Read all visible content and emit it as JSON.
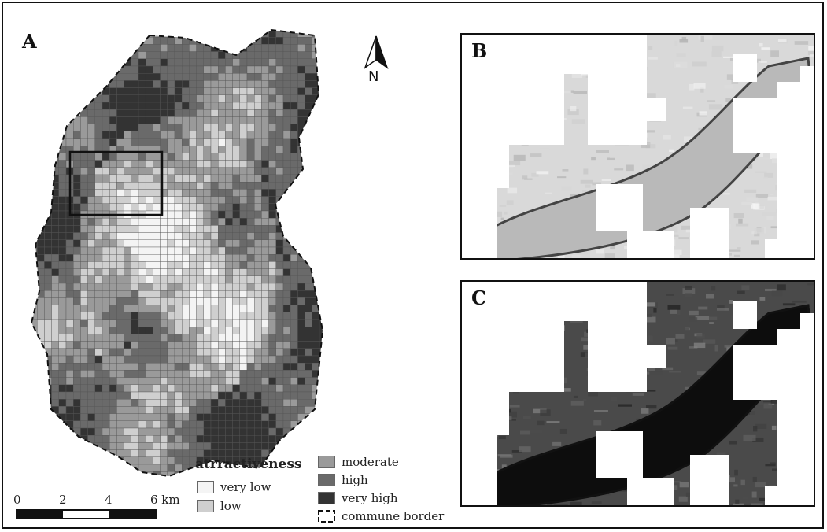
{
  "panels": {
    "a": {
      "label": "A"
    },
    "b": {
      "label": "B"
    },
    "c": {
      "label": "C"
    }
  },
  "north_arrow": {
    "label": "N",
    "icon": "north-arrow-icon"
  },
  "legend": {
    "title": "atrractiveness",
    "items": [
      {
        "label": "very low",
        "color": "#f4f4f4"
      },
      {
        "label": "low",
        "color": "#cfcfcf"
      },
      {
        "label": "moderate",
        "color": "#9a9a9a"
      },
      {
        "label": "high",
        "color": "#6a6a6a"
      },
      {
        "label": "very high",
        "color": "#333333"
      },
      {
        "label": "commune border",
        "color": "#111111"
      }
    ]
  },
  "scale_bar": {
    "ticks": [
      "0",
      "2",
      "4",
      "6 km"
    ]
  }
}
